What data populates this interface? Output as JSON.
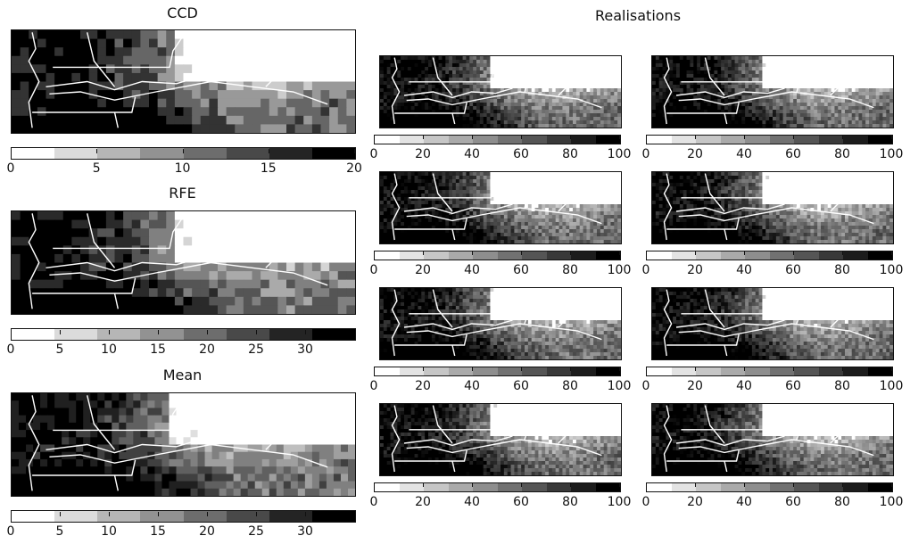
{
  "left_titles": [
    "CCD",
    "RFE",
    "Mean"
  ],
  "right_title": "Realisations",
  "colorbars": {
    "ccd": {
      "ticks": [
        "0",
        "5",
        "10",
        "15",
        "20"
      ],
      "min": 0,
      "max": 20
    },
    "rfe": {
      "ticks": [
        "0",
        "5",
        "10",
        "15",
        "20",
        "25",
        "30"
      ],
      "min": 0,
      "max": 35
    },
    "mean": {
      "ticks": [
        "0",
        "5",
        "10",
        "15",
        "20",
        "25",
        "30"
      ],
      "min": 0,
      "max": 35
    },
    "realisation": {
      "ticks": [
        "0",
        "20",
        "40",
        "60",
        "80",
        "100"
      ],
      "min": 0,
      "max": 100
    }
  },
  "colors": {
    "low": "#ffffff",
    "high": "#000000",
    "rivers": "#ffffff",
    "border": "#111111"
  }
}
